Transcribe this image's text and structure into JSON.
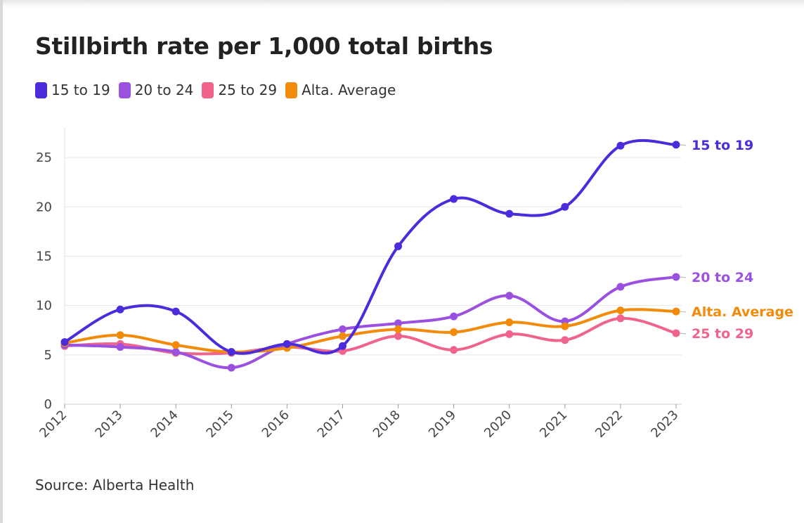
{
  "chart_data": {
    "type": "line",
    "title": "Stillbirth rate per 1,000 total births",
    "xlabel": "",
    "ylabel": "",
    "source": "Source: Alberta Health",
    "x": [
      "2012",
      "2013",
      "2014",
      "2015",
      "2016",
      "2017",
      "2018",
      "2019",
      "2020",
      "2021",
      "2022",
      "2023"
    ],
    "ylim": [
      0,
      28
    ],
    "yticks": [
      0,
      5,
      10,
      15,
      20,
      25
    ],
    "grid": true,
    "legend_position": "top-left",
    "series": [
      {
        "name": "15 to 19",
        "color": "#4b2bdc",
        "values": [
          6.3,
          9.6,
          9.4,
          5.3,
          6.1,
          5.9,
          16.0,
          20.8,
          19.3,
          20.0,
          26.2,
          26.3
        ],
        "end_label": "15 to 19"
      },
      {
        "name": "20 to 24",
        "color": "#9b51e0",
        "values": [
          6.0,
          5.8,
          5.3,
          3.7,
          6.1,
          7.6,
          8.2,
          8.9,
          11.0,
          8.4,
          11.9,
          12.9
        ],
        "end_label": "20 to 24"
      },
      {
        "name": "25 to 29",
        "color": "#f0648c",
        "values": [
          5.9,
          6.1,
          5.2,
          5.2,
          5.8,
          5.4,
          6.9,
          5.5,
          7.1,
          6.5,
          8.7,
          7.2
        ],
        "end_label": "25 to 29"
      },
      {
        "name": "Alta. Average",
        "color": "#f28a0a",
        "values": [
          6.2,
          7.0,
          6.0,
          5.3,
          5.7,
          6.9,
          7.6,
          7.3,
          8.3,
          7.9,
          9.5,
          9.4
        ],
        "end_label": "Alta. Average"
      }
    ]
  }
}
